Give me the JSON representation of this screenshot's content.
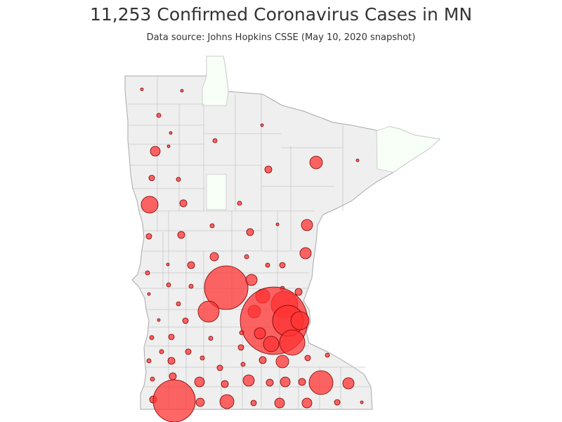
{
  "title": "11,253 Confirmed Coronavirus Cases in MN",
  "subtitle": "Data source: Johns Hopkins CSSE (May 10, 2020 snapshot)",
  "colors": {
    "state_fill": "#efefef",
    "zero_case_fill": "#f7fff7",
    "county_border": "#c8c8c8",
    "bubble_fill": "#ff3333",
    "bubble_stroke": "#7a0000"
  },
  "map": {
    "region": "Minnesota",
    "bubble_size_by": "confirmed cases per county"
  }
}
